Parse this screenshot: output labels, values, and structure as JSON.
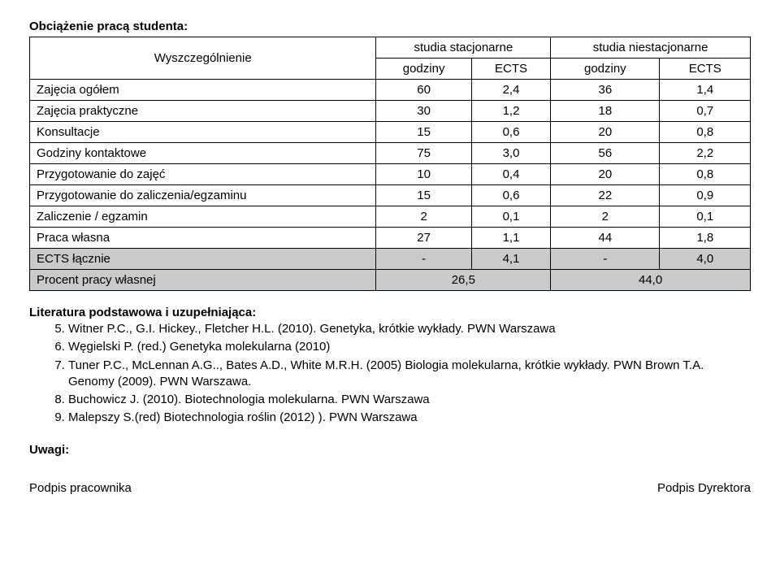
{
  "title": "Obciążenie pracą studenta:",
  "table": {
    "head": {
      "spec": "Wyszczególnienie",
      "stac": "studia stacjonarne",
      "niestac": "studia niestacjonarne",
      "godziny": "godziny",
      "ects": "ECTS"
    },
    "rows": [
      {
        "label": "Zajęcia ogółem",
        "c1": "60",
        "c2": "2,4",
        "c3": "36",
        "c4": "1,4"
      },
      {
        "label": "Zajęcia praktyczne",
        "c1": "30",
        "c2": "1,2",
        "c3": "18",
        "c4": "0,7"
      },
      {
        "label": "Konsultacje",
        "c1": "15",
        "c2": "0,6",
        "c3": "20",
        "c4": "0,8"
      },
      {
        "label": "Godziny kontaktowe",
        "c1": "75",
        "c2": "3,0",
        "c3": "56",
        "c4": "2,2"
      },
      {
        "label": "Przygotowanie do zajęć",
        "c1": "10",
        "c2": "0,4",
        "c3": "20",
        "c4": "0,8"
      },
      {
        "label": "Przygotowanie do zaliczenia/egzaminu",
        "c1": "15",
        "c2": "0,6",
        "c3": "22",
        "c4": "0,9"
      },
      {
        "label": "Zaliczenie / egzamin",
        "c1": "2",
        "c2": "0,1",
        "c3": "2",
        "c4": "0,1"
      },
      {
        "label": "Praca własna",
        "c1": "27",
        "c2": "1,1",
        "c3": "44",
        "c4": "1,8"
      }
    ],
    "ects_row": {
      "label": "ECTS łącznie",
      "c1": "-",
      "c2": "4,1",
      "c3": "-",
      "c4": "4,0"
    },
    "pct_row": {
      "label": "Procent pracy własnej",
      "v1": "26,5",
      "v2": "44,0"
    }
  },
  "refs_heading": "Literatura podstawowa i uzupełniająca:",
  "refs": [
    "Witner P.C., G.I. Hickey., Fletcher H.L. (2010). Genetyka, krótkie wykłady. PWN Warszawa",
    "Węgielski P. (red.) Genetyka molekularna (2010)",
    "Tuner P.C., McLennan A.G.., Bates A.D., White M.R.H. (2005) Biologia molekularna, krótkie wykłady. PWN Brown T.A. Genomy (2009). PWN Warszawa.",
    "Buchowicz J. (2010). Biotechnologia molekularna. PWN Warszawa",
    "Malepszy S.(red) Biotechnologia roślin (2012) ). PWN Warszawa"
  ],
  "uwagi": "Uwagi:",
  "sig_left": "Podpis pracownika",
  "sig_right": "Podpis Dyrektora"
}
